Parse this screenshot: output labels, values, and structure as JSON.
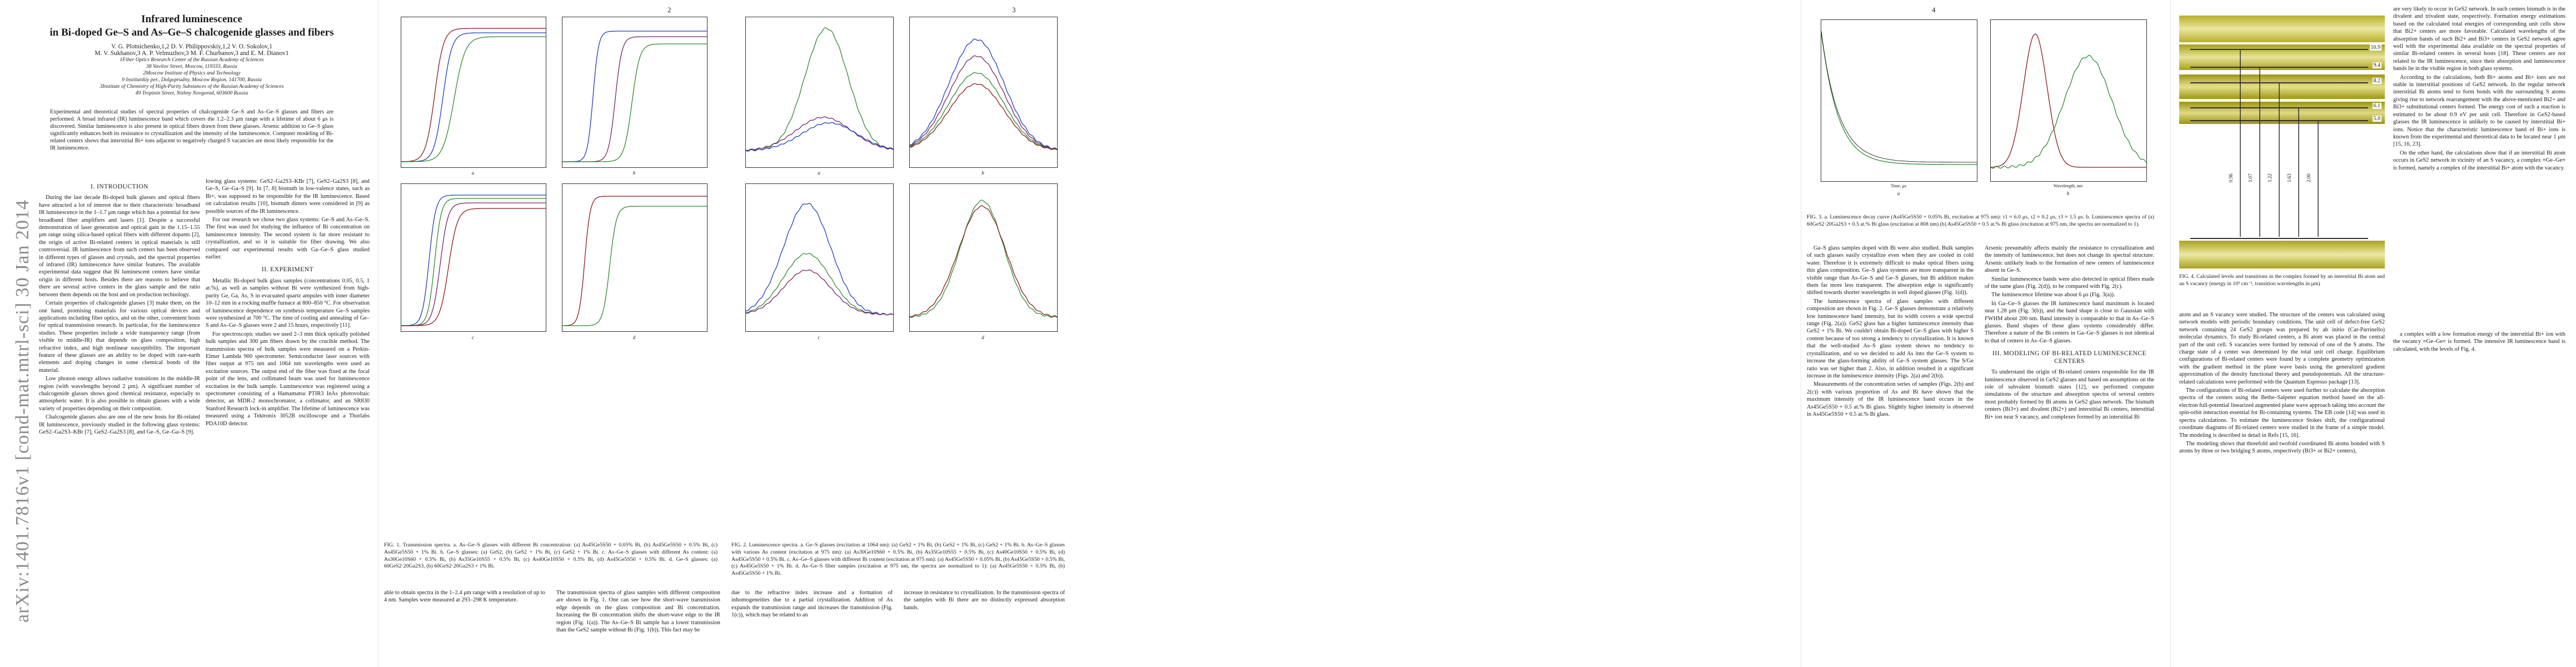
{
  "arxiv_stamp": "arXiv:1401.7816v1  [cond-mat.mtrl-sci]  30 Jan 2014",
  "page_numbers": [
    "2",
    "3",
    "4"
  ],
  "title": {
    "line1": "Infrared luminescence",
    "line2": "in Bi-doped Ge–S and As–Ge–S chalcogenide glasses and fibers",
    "authors": "V. G. Plotnichenko,1,2 D. V. Philippovskiy,1,2 V. O. Sokolov,1",
    "authors2": "M. V. Sukhanov,3 A. P. Velmuzhov,3 M. F. Churbanov,3 and E. M. Dianov1",
    "aff1": "1Fiber Optics Research Center of the Russian Academy of Sciences",
    "aff1b": "38 Vavilov Street, Moscow, 119333, Russia",
    "aff2": "2Moscow Institute of Physics and Technology",
    "aff2b": "9 Institutskiy per., Dolgoprudny, Moscow Region, 141700, Russia",
    "aff3": "3Institute of Chemistry of High-Purity Substances of the Russian Academy of Sciences",
    "aff3b": "49 Tropinin Street, Nizhny Novgorod, 603600 Russia"
  },
  "abstract": "Experimental and theoretical studies of spectral properties of chalcogenide Ge–S and As–Ge–S glasses and fibers are performed. A broad infrared (IR) luminescence band which covers the 1.2–2.3 μm range with a lifetime of about 6 μs is discovered. Similar luminescence is also present in optical fibers drawn from these glasses. Arsenic addition to Ge–S glass significantly enhances both its resistance to crystallization and the intensity of the luminescence. Computer modeling of Bi-related centers shows that interstitial Bi+ ions adjacent to negatively charged S vacancies are most likely responsible for the IR luminescence.",
  "sections": {
    "intro": "I.  INTRODUCTION",
    "experiment": "II.  EXPERIMENT",
    "modeling": "III.  MODELING OF BI-RELATED LUMINESCENCE CENTERS"
  },
  "page1": {
    "col1": [
      "During the last decade Bi-doped bulk glasses and optical fibers have attracted a lot of interest due to their characteristic broadband IR luminescence in the 1–1.7 μm range which has a potential for new broadband fiber amplifiers and lasers [1]. Despite a successful demonstration of laser generation and optical gain in the 1.15–1.55 μm range using silica-based optical fibers with different dopants [2], the origin of active Bi-related centers in optical materials is still controversial. IR luminescence from such centers has been observed in different types of glasses and crystals, and the spectral properties of infrared (IR) luminescence have similar features. The available experimental data suggest that Bi luminescent centers have similar origin in different hosts. Besides there are reasons to believe that there are several active centers in the glass sample and the ratio between them depends on the host and on production technology.",
      "Certain properties of chalcogenide glasses [3] make them, on the one hand, promising materials for various optical devices and applications including fiber optics, and on the other, convenient hosts for optical transmission research. In particular, for the luminescence studies. These properties include a wide transparency range (from visible to middle-IR) that depends on glass composition, high refractive index, and high nonlinear susceptibility. The important feature of these glasses are an ability to be doped with rare-earth elements and doping changes in some chemical bonds of the material.",
      "Low phonon energy allows radiative transitions in the middle-IR region (with wavelengths beyond 2 μm). A significant number of chalcogenide glasses shows good chemical resistance, especially to atmospheric water. It is also possible to obtain glasses with a wide variety of properties depending on their composition.",
      "Chalcogenide glasses also are one of the new hosts for Bi-related IR luminescence, previously studied in the following glass systems: GeS2–Ga2S3–KBr [7], GeS2–Ga2S3 [8], and Ge–S, Ge–Ga–S [9]."
    ],
    "col2": [
      "lowing glass systems: GeS2–Ga2S3–KBr [7], GeS2–Ga2S3 [8], and Ge–S, Ge–Ga–S [9]. In [7, 8] bismuth in low-valence states, such as Bi+, was supposed to be responsible for the IR luminescence. Based on calculation results [10], bismuth dimers were considered in [9] as possible sources of the IR luminescence.",
      "For our research we chose two glass systems: Ge–S and As–Ge–S. The first was used for studying the influence of Bi concentration on luminescence intensity. The second system is far more resistant to crystallization, and so it is suitable for fiber drawing. We also compared our experimental results with Ga–Ge–S glass studied earlier."
    ],
    "col2b": [
      "Metallic Bi-doped bulk glass samples (concentrations 0.05, 0.5, 1 at.%), as well as samples without Bi were synthesized from high-purity Ge, Ga, As, S in evacuated quartz ampules with inner diameter 10–12 mm in a rocking muffle furnace at 800–850 °C. For observation of luminescence dependence on synthesis temperature Ge–S samples were synthesized at 700 °C. The time of cooling and annealing of Ge–S and As–Ge–S glasses were 2 and 15 hours, respectively [11].",
      "For spectroscopic studies we used 2–3 mm thick optically polished bulk samples and 300 μm fibers drawn by the crucible method. The transmission spectra of bulk samples were measured on a Perkin-Elmer Lambda 900 spectrometer. Semiconductor laser sources with fiber output at 975 nm and 1064 nm wavelengths were used as excitation sources. The output end of the fiber was fixed at the focal point of the lens, and collimated beam was used for luminescence excitation in the bulk sample. Luminescence was registered using a spectrometer consisting of a Hamamatsu PTIR3 InAs photovoltaic detector, an MDR-2 monochromator, a collimator, and an SR830 Stanford Research lock-in amplifier. The lifetime of luminescence was measured using a Tektronix 3052B oscilloscope and a Thorlabs PDA10D detector."
    ]
  },
  "figure1": {
    "caption": "FIG. 1.  Transmission spectra.  a.  As–Ge–S glasses with different Bi concentration:  (a) As45Ge5S50 + 0.05% Bi,  (b) As45Ge5S50 + 0.5% Bi,  (c) As45Ge5S50 + 1% Bi.  b.  Ge–S glasses:  (a) GeS2,  (b) GeS2 + 1% Bi,  (c) GeS2 + 1% Bi.  c.  As–Ge–S glasses with different As content:  (a) As30Ge10S60 + 0.5% Bi,  (b) As35Ge10S55 + 0.5% Bi,  (c) As40Ge10S50 + 0.5% Bi,  (d) As45Ge5S50 + 0.5% Bi.  d.  Ge–S glasses:  (a) 60GeS2·20Ga2S3,  (b) 60GeS2·20Ga2S3 + 1% Bi.",
    "after": [
      "able to obtain spectra in the 1–2.4 μm range with a resolution of up to 4 nm. Samples were measured at 293–298 K temperature.",
      "The transmission spectra of glass samples with different composition are shown in Fig. 1. One can see how the short-wave transmission edge depends on the glass composition and Bi concentration. Increasing the Bi concentration shifts the short-wave edge to the IR region (Fig. 1(a)). The As–Ge–S Bi sample has a lower transmission than the GeS2 sample without Bi (Fig. 1(b)). This fact may be"
    ],
    "panels": [
      "a",
      "b",
      "c",
      "d"
    ]
  },
  "figure2": {
    "caption": "FIG. 2.  Luminescence spectra.  a.  Ge–S glasses (excitation at 1064 nm):  (a) GeS2 + 1% Bi,  (b) GeS2 + 1% Bi,  (c) GeS2 + 1% Bi.  b.  As–Ge–S glasses with various As content (excitation at 975 nm):  (a) As30Ge10S60 + 0.5% Bi,  (b) As35Ge10S55 + 0.5% Bi,  (c) As40Ge10S50 + 0.5% Bi,  (d) As45Ge5S50 + 0.5% Bi.  c.  As–Ge–S glasses with different Bi content (excitation at 975 nm):  (a) As45Ge5S50 + 0.05% Bi,  (b) As45Ge5S50 + 0.5% Bi,  (c) As45Ge5S50 + 1% Bi.  d.  As–Ge–S fiber samples (excitation at 975 nm, the spectra are normalized to 1):  (a) As45Ge5S50 + 0.5% Bi,  (b) As45Ge5S50 + 1% Bi.",
    "after": [
      "due to the refractive index increase and a formation of inhomogeneities due to a partial crystallization. Addition of As expands the transmission range and increases the transmission (Fig. 1(c)), which may be related to an",
      "increase in resistance to crystallization. In the transmission spectra of the samples with Bi there are no distinctly expressed absorption bands."
    ],
    "panels": [
      "a",
      "b",
      "c",
      "d"
    ],
    "xlabel": "Wavelength, nm",
    "ylabel": "Luminescence intensity, arbitrary units"
  },
  "figure3": {
    "caption": "FIG. 3.  a. Luminescence decay curve (As45Ge5S50 + 0.05% Bi, excitation at 975 nm):  τ1 ≈ 6.0 μs,  τ2 ≈ 0.2 μs,  τ3 ≈ 1.5 μs.  b. Luminescence spectra of (a) 60GeS2·20Ga2S3 + 0.5 at.% Bi glass (excitation at 808 nm) (b) As45Ge5S50 + 0.5 at.% Bi glass (excitation at 975 nm, the spectra are normalized to 1).",
    "xlabel_a": "Time, μs",
    "xlabel_b": "Wavelength, nm",
    "ylabel": "Luminescence intensity, arbitrary units",
    "panels": [
      "a",
      "b"
    ]
  },
  "page3": {
    "col1": [
      "Ga–S glass samples doped with Bi were also studied. Bulk samples of such glasses easily crystallize even when they are cooled in cold water. Therefore it is extremely difficult to make optical fibers using this glass composition. Ge–S glass systems are more transparent in the visible range than As–Ge–S and Ge–S glasses, but Bi addition makes them far more less transparent. The absorption edge is significantly shifted towards shorter wavelengths in well doped glasses (Fig. 1(d)).",
      "The luminescence spectra of glass samples with different composition are shown in Fig. 2. Ge–S glasses demonstrate a relatively low luminescence band intensity, but its width covers a wide spectral range (Fig. 2(a)). GeS2 glass has a higher luminescence intensity than GeS2 + 1% Bi. We couldn't obtain Bi-doped Ge–S glass with higher S content because of too strong a tendency to crystallization. It is known that the well-studied As–S glass system shows no tendency to crystallization, and so we decided to add As into the Ge–S system to increase the glass-forming ability of Ge–S system glasses. The S/Ge ratio was set higher than 2. Also, in addition resulted in a significant increase in the luminescence intensity (Figs. 2(a) and 2(b)).",
      "Measurements of the concentration series of samples (Figs. 2(b) and 2(c)) with various proportion of As and Bi have shown that the maximum intensity of the IR luminescence band occurs in the As45Ge5S50 + 0.5 at.% Bi glass. Slightly higher intensity is observed in As45Ge5S50 + 0.5 at.% Bi glass."
    ],
    "col2": [
      "Arsenic presumably affects mainly the resistance to crystallization and the intensity of luminescence, but does not change its spectral structure. Arsenic unlikely leads to the formation of new centers of luminescence absent in Ge–S.",
      "Similar luminescence bands were also detected in optical fibers made of the same glass (Fig. 2(d)), to be compared with Fig. 2(c).",
      "The luminescence lifetime was about 6 μs (Fig. 3(a)).",
      "In Ga–Ge–S glasses the IR luminescence band maximum is located near 1.28 μm (Fig. 3(b)), and the band shape is close to Gaussian with FWHM about 200 nm. Band intensity is comparable to that in As–Ge–S glasses. Band shapes of these glass systems considerably differ. Therefore a nature of the Bi centers in Ga–Ge–S glasses is not identical to that of centers in As–Ge–S glasses."
    ],
    "col2b": [
      "To understand the origin of Bi-related centers responsible for the IR luminescence observed in GeS2 glasses and based on assumptions on the role of subvalent bismuth states [12], we performed computer simulations of the structure and absorption spectra of several centers most probably formed by Bi atoms in GeS2 glass network. The bismuth centers (Bi3+) and divalent (Bi2+) and interstitial Bi centers, interstitial Bi+ ion near S vacancy, and complexes formed by an interstitial Bi"
    ]
  },
  "figure4": {
    "caption": "FIG. 4.  Calculated levels and transitions in the complex formed by an interstitial Bi atom and an S vacancy (energy in 10³ cm⁻¹, transition wavelengths in μm)",
    "levels": [
      "10.9",
      "9.4",
      "8.2",
      "6.1",
      "5.0"
    ],
    "bands": [
      "0.96",
      "1.07",
      "1.22",
      "1.63",
      "2.00"
    ]
  },
  "page4": {
    "col1": [
      "are very likely to occur in GeS2 network. In such centers bismuth is in the divalent and trivalent state, respectively. Formation energy estimations based on the calculated total energies of corresponding unit cells show that Bi2+ centers are more favorable. Calculated wavelengths of the absorption bands of such Bi2+ and Bi3+ centers in GeS2 network agree well with the experimental data available on the spectral properties of similar Bi-related centers in several hosts [18]. These centers are not related to the IR luminescence, since their absorption and luminescence bands lie in the visible region in both glass systems.",
      "According to the calculations, both Bi+ atoms and Bi+ ions are not stable in interstitial positions of GeS2 network. In the regular network interstitial Bi atoms tend to form bonds with the surrounding S atoms giving rise to network rearrangement with the above-mentioned Bi2+ and Bi3+ substitutional centers formed. The energy cost of such a reaction is estimated to be about 0.9 eV per unit cell. Therefore in GeS2-based glasses the IR luminescence is unlikely to be caused by interstitial Bi+ ions. Notice that the characteristic luminescence band of Bi+ ions is known from the experimental and theoretical data to be located near 1 μm [15, 16, 23].",
      "On the other hand, the calculations show that if an interstitial Bi atom occurs in GeS2 network in vicinity of an S vacancy, a complex ≡Ge–Ge≡ is formed, namely a complex of the interstitial Bi+ atom with the vacancy."
    ],
    "col2": [
      "atom and an S vacancy were studied. The structure of the centers was calculated using network models with periodic boundary conditions. The unit cell of defect-free GeS2 network containing 24 GeS2 groups was prepared by ab initio (Car-Parrinello) molecular dynamics. To study Bi-related centers, a Bi atom was placed in the central part of the unit cell. S vacancies were formed by removal of one of the S atoms. The charge state of a center was determined by the total unit cell charge. Equilibrium configurations of Bi-related centers were found by a complete geometry optimization with the gradient method in the plane wave basis using the generalized gradient approximation of the density functional theory and pseudopotentials. All the structure-related calculations were performed with the Quantum Espresso package [13].",
      "The configurations of Bi-related centers were used further to calculate the absorption spectra of the centers using the Bethe–Salpeter equation method based on the all-electron full-potential linearized augmented plane wave approach taking into account the spin-orbit interaction essential for Bi-containing systems. The EB code [14] was used in spectra calculations. To estimate the luminescence Stokes shift, the configurational coordinate diagrams of Bi-related centers were studied in the frame of a simple model. The modeling is described in detail in Refs [15, 16].",
      "The modeling shows that threefold and twofold coordinated Bi atoms bonded with S atoms by three or two bridging S atoms, respectively (Bi3+ or Bi2+ centers),",
      "a complex with a low formation energy of the interstitial Bi+ ion with the vacancy ≡Ge–Ge≡ is formed. The intensive IR luminescence band is calculated, with the levels of Fig. 4."
    ]
  }
}
